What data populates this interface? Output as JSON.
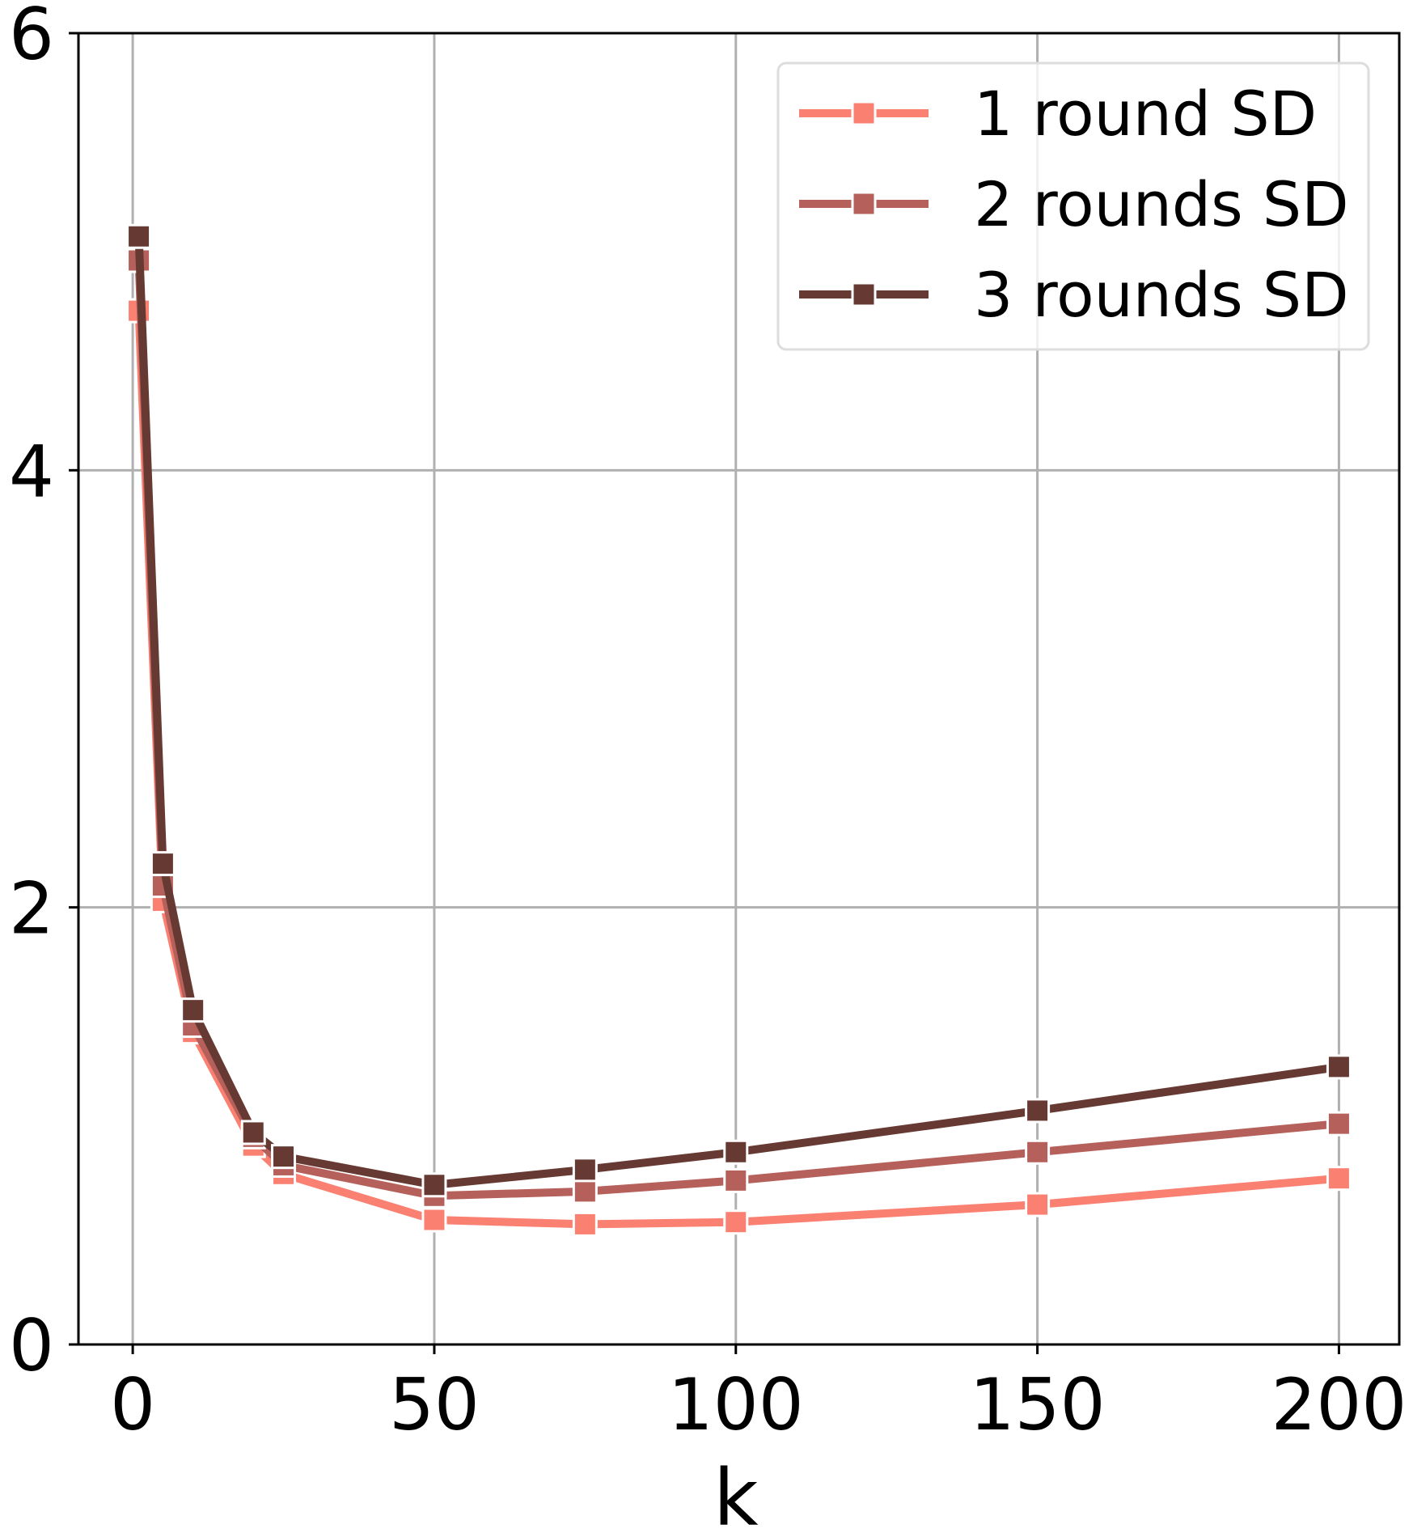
{
  "chart_data": {
    "type": "line",
    "title": "",
    "xlabel": "k",
    "ylabel": "",
    "xlim": [
      -9,
      210
    ],
    "ylim": [
      0,
      6
    ],
    "xticks": [
      0,
      50,
      100,
      150,
      200
    ],
    "yticks": [
      0,
      2,
      4,
      6
    ],
    "grid": true,
    "legend_position": "upper-right",
    "marker": "square",
    "series": [
      {
        "name": "1 round SD",
        "color": "#fa8072",
        "x": [
          1,
          5,
          10,
          20,
          25,
          50,
          75,
          100,
          150,
          200
        ],
        "y": [
          4.73,
          2.03,
          1.43,
          0.91,
          0.78,
          0.57,
          0.55,
          0.56,
          0.64,
          0.76
        ]
      },
      {
        "name": "2 rounds SD",
        "color": "#b5605a",
        "x": [
          1,
          5,
          10,
          20,
          25,
          50,
          75,
          100,
          150,
          200
        ],
        "y": [
          4.96,
          2.1,
          1.46,
          0.95,
          0.82,
          0.68,
          0.7,
          0.75,
          0.88,
          1.01
        ]
      },
      {
        "name": "3 rounds SD",
        "color": "#663a33",
        "x": [
          1,
          5,
          10,
          20,
          25,
          50,
          75,
          100,
          150,
          200
        ],
        "y": [
          5.07,
          2.2,
          1.53,
          0.97,
          0.86,
          0.73,
          0.8,
          0.88,
          1.07,
          1.27
        ]
      }
    ]
  }
}
